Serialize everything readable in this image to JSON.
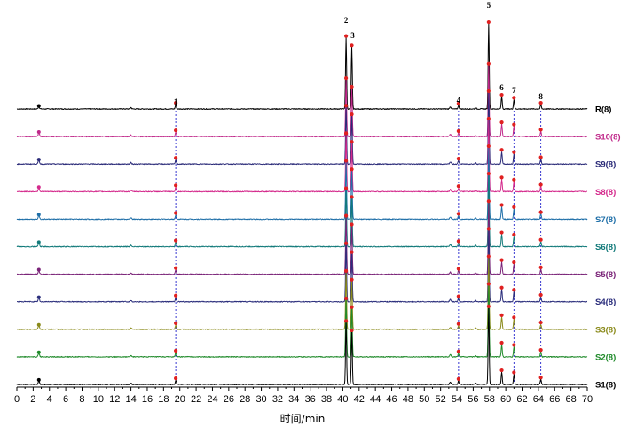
{
  "chart_data": {
    "type": "line",
    "xlabel": "时间/min",
    "ylabel": "",
    "xlim": [
      0,
      70
    ],
    "x_ticks": [
      0,
      2,
      4,
      6,
      8,
      10,
      12,
      14,
      16,
      18,
      20,
      22,
      24,
      26,
      28,
      30,
      32,
      34,
      36,
      38,
      40,
      42,
      44,
      46,
      48,
      50,
      52,
      54,
      56,
      58,
      60,
      62,
      64,
      66,
      68,
      70
    ],
    "grid": false,
    "legend": "none",
    "peaks": [
      {
        "id": "1",
        "rt": 19.5,
        "label_shown": true
      },
      {
        "id": "2",
        "rt": 40.4,
        "label_shown": true
      },
      {
        "id": "3",
        "rt": 41.1,
        "label_shown": true
      },
      {
        "id": "4",
        "rt": 54.2,
        "label_shown": true
      },
      {
        "id": "5",
        "rt": 57.9,
        "label_shown": true
      },
      {
        "id": "6",
        "rt": 59.5,
        "label_shown": true
      },
      {
        "id": "7",
        "rt": 61.0,
        "label_shown": true
      },
      {
        "id": "8",
        "rt": 64.3,
        "label_shown": true
      }
    ],
    "series": [
      {
        "name": "R(8)",
        "color": "#000000",
        "heights": [
          0.06,
          0.98,
          0.85,
          0.05,
          1.17,
          0.17,
          0.13,
          0.06
        ],
        "early": 0.03
      },
      {
        "name": "S10(8)",
        "color": "#c0288a",
        "heights": [
          0.06,
          0.78,
          0.66,
          0.05,
          0.98,
          0.17,
          0.14,
          0.07
        ],
        "early": 0.05
      },
      {
        "name": "S9(8)",
        "color": "#2a2a78",
        "heights": [
          0.06,
          0.78,
          0.66,
          0.05,
          0.98,
          0.17,
          0.14,
          0.07
        ],
        "early": 0.05
      },
      {
        "name": "S8(8)",
        "color": "#d42a8c",
        "heights": [
          0.06,
          0.78,
          0.66,
          0.05,
          0.98,
          0.17,
          0.14,
          0.07
        ],
        "early": 0.05
      },
      {
        "name": "S7(8)",
        "color": "#1f6fa8",
        "heights": [
          0.06,
          0.78,
          0.66,
          0.05,
          0.98,
          0.17,
          0.14,
          0.07
        ],
        "early": 0.05
      },
      {
        "name": "S6(8)",
        "color": "#127a7a",
        "heights": [
          0.06,
          0.78,
          0.66,
          0.05,
          0.98,
          0.17,
          0.14,
          0.07
        ],
        "early": 0.05
      },
      {
        "name": "S5(8)",
        "color": "#7a2378",
        "heights": [
          0.06,
          0.78,
          0.66,
          0.05,
          0.98,
          0.17,
          0.14,
          0.07
        ],
        "early": 0.05
      },
      {
        "name": "S4(8)",
        "color": "#2b2e7c",
        "heights": [
          0.06,
          0.78,
          0.66,
          0.05,
          0.98,
          0.17,
          0.14,
          0.07
        ],
        "early": 0.05
      },
      {
        "name": "S3(8)",
        "color": "#8a8a1a",
        "heights": [
          0.06,
          0.78,
          0.66,
          0.05,
          0.98,
          0.17,
          0.14,
          0.07
        ],
        "early": 0.05
      },
      {
        "name": "S2(8)",
        "color": "#1f8a2a",
        "heights": [
          0.06,
          0.78,
          0.66,
          0.05,
          0.98,
          0.17,
          0.14,
          0.07
        ],
        "early": 0.05
      },
      {
        "name": "S1(8)",
        "color": "#000000",
        "heights": [
          0.06,
          0.85,
          0.72,
          0.05,
          1.05,
          0.17,
          0.14,
          0.07
        ],
        "early": 0.05
      }
    ]
  }
}
